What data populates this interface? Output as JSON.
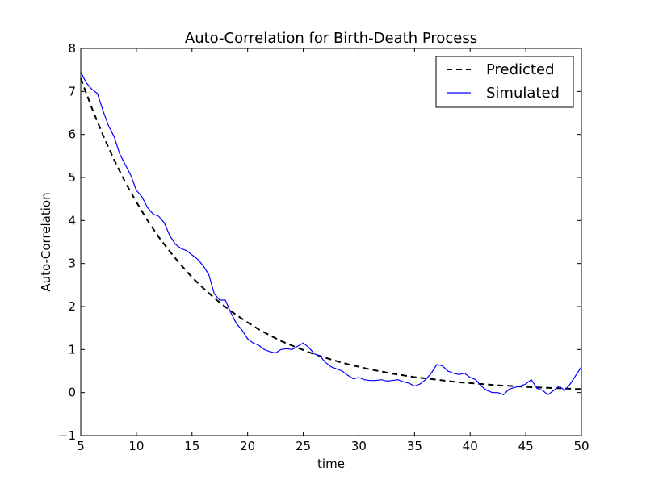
{
  "chart_data": {
    "type": "line",
    "title": "Auto-Correlation for Birth-Death Process",
    "xlabel": "time",
    "ylabel": "Auto-Correlation",
    "xlim": [
      5,
      50
    ],
    "ylim": [
      -1,
      8
    ],
    "xticks": [
      "5",
      "10",
      "15",
      "20",
      "25",
      "30",
      "35",
      "40",
      "45",
      "50"
    ],
    "yticks": [
      "−1",
      "0",
      "1",
      "2",
      "3",
      "4",
      "5",
      "6",
      "7",
      "8"
    ],
    "grid": false,
    "legend_position": "top-right",
    "series": [
      {
        "name": "Predicted",
        "style": "dashed",
        "color": "#000000",
        "x": [
          5,
          6,
          7,
          8,
          9,
          10,
          11,
          12,
          13,
          14,
          15,
          16,
          17,
          18,
          19,
          20,
          21,
          22,
          23,
          24,
          25,
          26,
          27,
          28,
          29,
          30,
          31,
          32,
          33,
          34,
          35,
          36,
          37,
          38,
          39,
          40,
          41,
          42,
          43,
          44,
          45,
          46,
          47,
          48,
          49,
          50
        ],
        "y": [
          7.3,
          6.61,
          5.98,
          5.41,
          4.89,
          4.43,
          4.0,
          3.62,
          3.28,
          2.97,
          2.68,
          2.43,
          2.2,
          1.99,
          1.8,
          1.63,
          1.47,
          1.33,
          1.2,
          1.09,
          0.99,
          0.89,
          0.81,
          0.73,
          0.66,
          0.6,
          0.54,
          0.49,
          0.44,
          0.4,
          0.36,
          0.33,
          0.3,
          0.27,
          0.24,
          0.22,
          0.2,
          0.18,
          0.16,
          0.15,
          0.13,
          0.12,
          0.11,
          0.1,
          0.09,
          0.08
        ]
      },
      {
        "name": "Simulated",
        "style": "solid",
        "color": "#0000ff",
        "x": [
          5,
          5.5,
          6,
          6.5,
          7,
          7.5,
          8,
          8.5,
          9,
          9.5,
          10,
          10.5,
          11,
          11.5,
          12,
          12.5,
          13,
          13.5,
          14,
          14.5,
          15,
          15.5,
          16,
          16.5,
          17,
          17.5,
          18,
          18.5,
          19,
          19.5,
          20,
          20.5,
          21,
          21.5,
          22,
          22.5,
          23,
          23.5,
          24,
          24.5,
          25,
          25.5,
          26,
          26.5,
          27,
          27.5,
          28,
          28.5,
          29,
          29.5,
          30,
          30.5,
          31,
          31.5,
          32,
          32.5,
          33,
          33.5,
          34,
          34.5,
          35,
          35.5,
          36,
          36.5,
          37,
          37.5,
          38,
          38.5,
          39,
          39.5,
          40,
          40.5,
          41,
          41.5,
          42,
          42.5,
          43,
          43.5,
          44,
          44.5,
          45,
          45.5,
          46,
          46.5,
          47,
          47.5,
          48,
          48.5,
          49,
          49.5,
          50
        ],
        "y": [
          7.45,
          7.2,
          7.05,
          6.95,
          6.55,
          6.2,
          5.95,
          5.55,
          5.3,
          5.05,
          4.7,
          4.55,
          4.3,
          4.15,
          4.1,
          3.95,
          3.65,
          3.45,
          3.35,
          3.3,
          3.2,
          3.1,
          2.95,
          2.75,
          2.3,
          2.15,
          2.15,
          1.85,
          1.6,
          1.45,
          1.25,
          1.15,
          1.1,
          1.0,
          0.95,
          0.92,
          1.0,
          1.02,
          1.0,
          1.08,
          1.15,
          1.05,
          0.9,
          0.85,
          0.7,
          0.6,
          0.55,
          0.5,
          0.4,
          0.32,
          0.35,
          0.3,
          0.28,
          0.28,
          0.3,
          0.27,
          0.28,
          0.3,
          0.25,
          0.22,
          0.15,
          0.2,
          0.3,
          0.45,
          0.65,
          0.62,
          0.5,
          0.45,
          0.42,
          0.45,
          0.35,
          0.3,
          0.15,
          0.05,
          0.0,
          0.0,
          -0.05,
          0.08,
          0.12,
          0.15,
          0.2,
          0.3,
          0.1,
          0.05,
          -0.05,
          0.05,
          0.15,
          0.05,
          0.2,
          0.4,
          0.6
        ]
      }
    ]
  }
}
